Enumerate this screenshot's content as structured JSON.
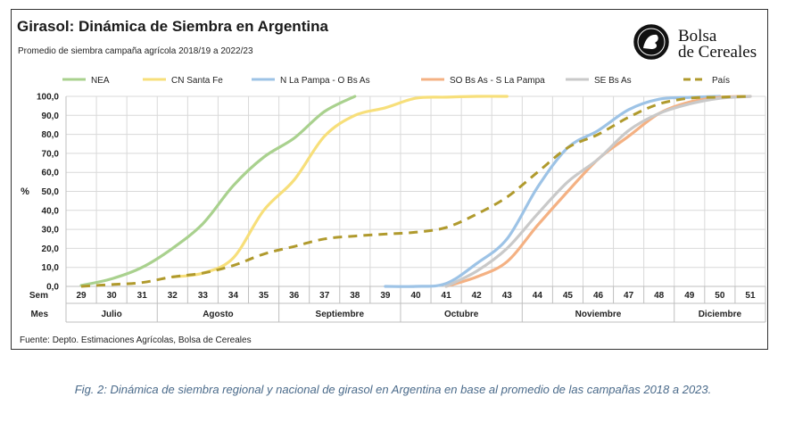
{
  "header": {
    "title": "Girasol: Dinámica de Siembra en Argentina",
    "subtitle": "Promedio de siembra campaña agrícola 2018/19  a 2022/23"
  },
  "logo": {
    "line1": "Bolsa",
    "line2": "de Cereales",
    "icon": "bolsa-seal-icon"
  },
  "source": "Fuente: Depto. Estimaciones Agrícolas, Bolsa de Cereales",
  "caption": "Fig. 2: Dinámica de siembra regional y nacional de girasol en Argentina en base al promedio de las campañas 2018 a 2023.",
  "chart_data": {
    "type": "line",
    "ylabel": "%",
    "ylim": [
      0,
      100
    ],
    "yticks": [
      "0,0",
      "10,0",
      "20,0",
      "30,0",
      "40,0",
      "50,0",
      "60,0",
      "70,0",
      "80,0",
      "90,0",
      "100,0"
    ],
    "xlabel_row1": "Sem",
    "xlabel_row2": "Mes",
    "x": [
      29,
      30,
      31,
      32,
      33,
      34,
      35,
      36,
      37,
      38,
      39,
      40,
      41,
      42,
      43,
      44,
      45,
      46,
      47,
      48,
      49,
      50,
      51
    ],
    "months": [
      {
        "name": "Julio",
        "from": 29,
        "to": 31
      },
      {
        "name": "Agosto",
        "from": 32,
        "to": 35
      },
      {
        "name": "Septiembre",
        "from": 36,
        "to": 39
      },
      {
        "name": "Octubre",
        "from": 40,
        "to": 43
      },
      {
        "name": "Noviembre",
        "from": 44,
        "to": 48
      },
      {
        "name": "Diciembre",
        "from": 49,
        "to": 51
      }
    ],
    "legend_position": "top",
    "series": [
      {
        "name": "NEA",
        "color": "#a9d18e",
        "dash": false,
        "points": [
          [
            29,
            0.5
          ],
          [
            30,
            4
          ],
          [
            31,
            10
          ],
          [
            32,
            20
          ],
          [
            33,
            33
          ],
          [
            34,
            53
          ],
          [
            35,
            68
          ],
          [
            36,
            78
          ],
          [
            37,
            92
          ],
          [
            38,
            100
          ]
        ]
      },
      {
        "name": "CN Santa Fe",
        "color": "#f7df7a",
        "dash": false,
        "points": [
          [
            32,
            5
          ],
          [
            33,
            7
          ],
          [
            34,
            15
          ],
          [
            35,
            40
          ],
          [
            36,
            56
          ],
          [
            37,
            79
          ],
          [
            38,
            90
          ],
          [
            39,
            94
          ],
          [
            40,
            99
          ],
          [
            41,
            99.6
          ],
          [
            42,
            100
          ],
          [
            43,
            100
          ]
        ]
      },
      {
        "name": "N La Pampa - O Bs As",
        "color": "#9dc3e6",
        "dash": false,
        "points": [
          [
            39,
            0
          ],
          [
            40,
            0
          ],
          [
            41,
            1.5
          ],
          [
            42,
            12
          ],
          [
            43,
            25
          ],
          [
            44,
            52
          ],
          [
            45,
            73
          ],
          [
            46,
            82
          ],
          [
            47,
            93
          ],
          [
            48,
            98.5
          ],
          [
            49,
            99.5
          ],
          [
            50,
            100
          ]
        ]
      },
      {
        "name": "SO Bs As - S La Pampa",
        "color": "#f4b183",
        "dash": false,
        "points": [
          [
            41,
            0
          ],
          [
            42,
            5
          ],
          [
            43,
            13
          ],
          [
            44,
            32
          ],
          [
            45,
            50
          ],
          [
            46,
            67
          ],
          [
            47,
            79
          ],
          [
            48,
            91
          ],
          [
            49,
            97
          ],
          [
            50,
            99.5
          ],
          [
            51,
            100
          ]
        ]
      },
      {
        "name": "SE Bs As",
        "color": "#c9c9c9",
        "dash": false,
        "points": [
          [
            41,
            0
          ],
          [
            42,
            8
          ],
          [
            43,
            20
          ],
          [
            44,
            38
          ],
          [
            45,
            55
          ],
          [
            46,
            67
          ],
          [
            47,
            82
          ],
          [
            48,
            91
          ],
          [
            49,
            96
          ],
          [
            50,
            99
          ],
          [
            51,
            100
          ]
        ]
      },
      {
        "name": "País",
        "color": "#b09a2d",
        "dash": true,
        "points": [
          [
            29,
            0
          ],
          [
            30,
            1
          ],
          [
            31,
            2
          ],
          [
            32,
            5
          ],
          [
            33,
            7
          ],
          [
            34,
            11
          ],
          [
            35,
            17
          ],
          [
            36,
            21
          ],
          [
            37,
            25
          ],
          [
            38,
            26.5
          ],
          [
            39,
            27.5
          ],
          [
            40,
            28.5
          ],
          [
            41,
            31
          ],
          [
            42,
            38
          ],
          [
            43,
            47
          ],
          [
            44,
            60
          ],
          [
            45,
            73
          ],
          [
            46,
            80
          ],
          [
            47,
            89
          ],
          [
            48,
            96
          ],
          [
            49,
            99
          ],
          [
            50,
            99.6
          ],
          [
            51,
            100
          ]
        ]
      }
    ]
  }
}
